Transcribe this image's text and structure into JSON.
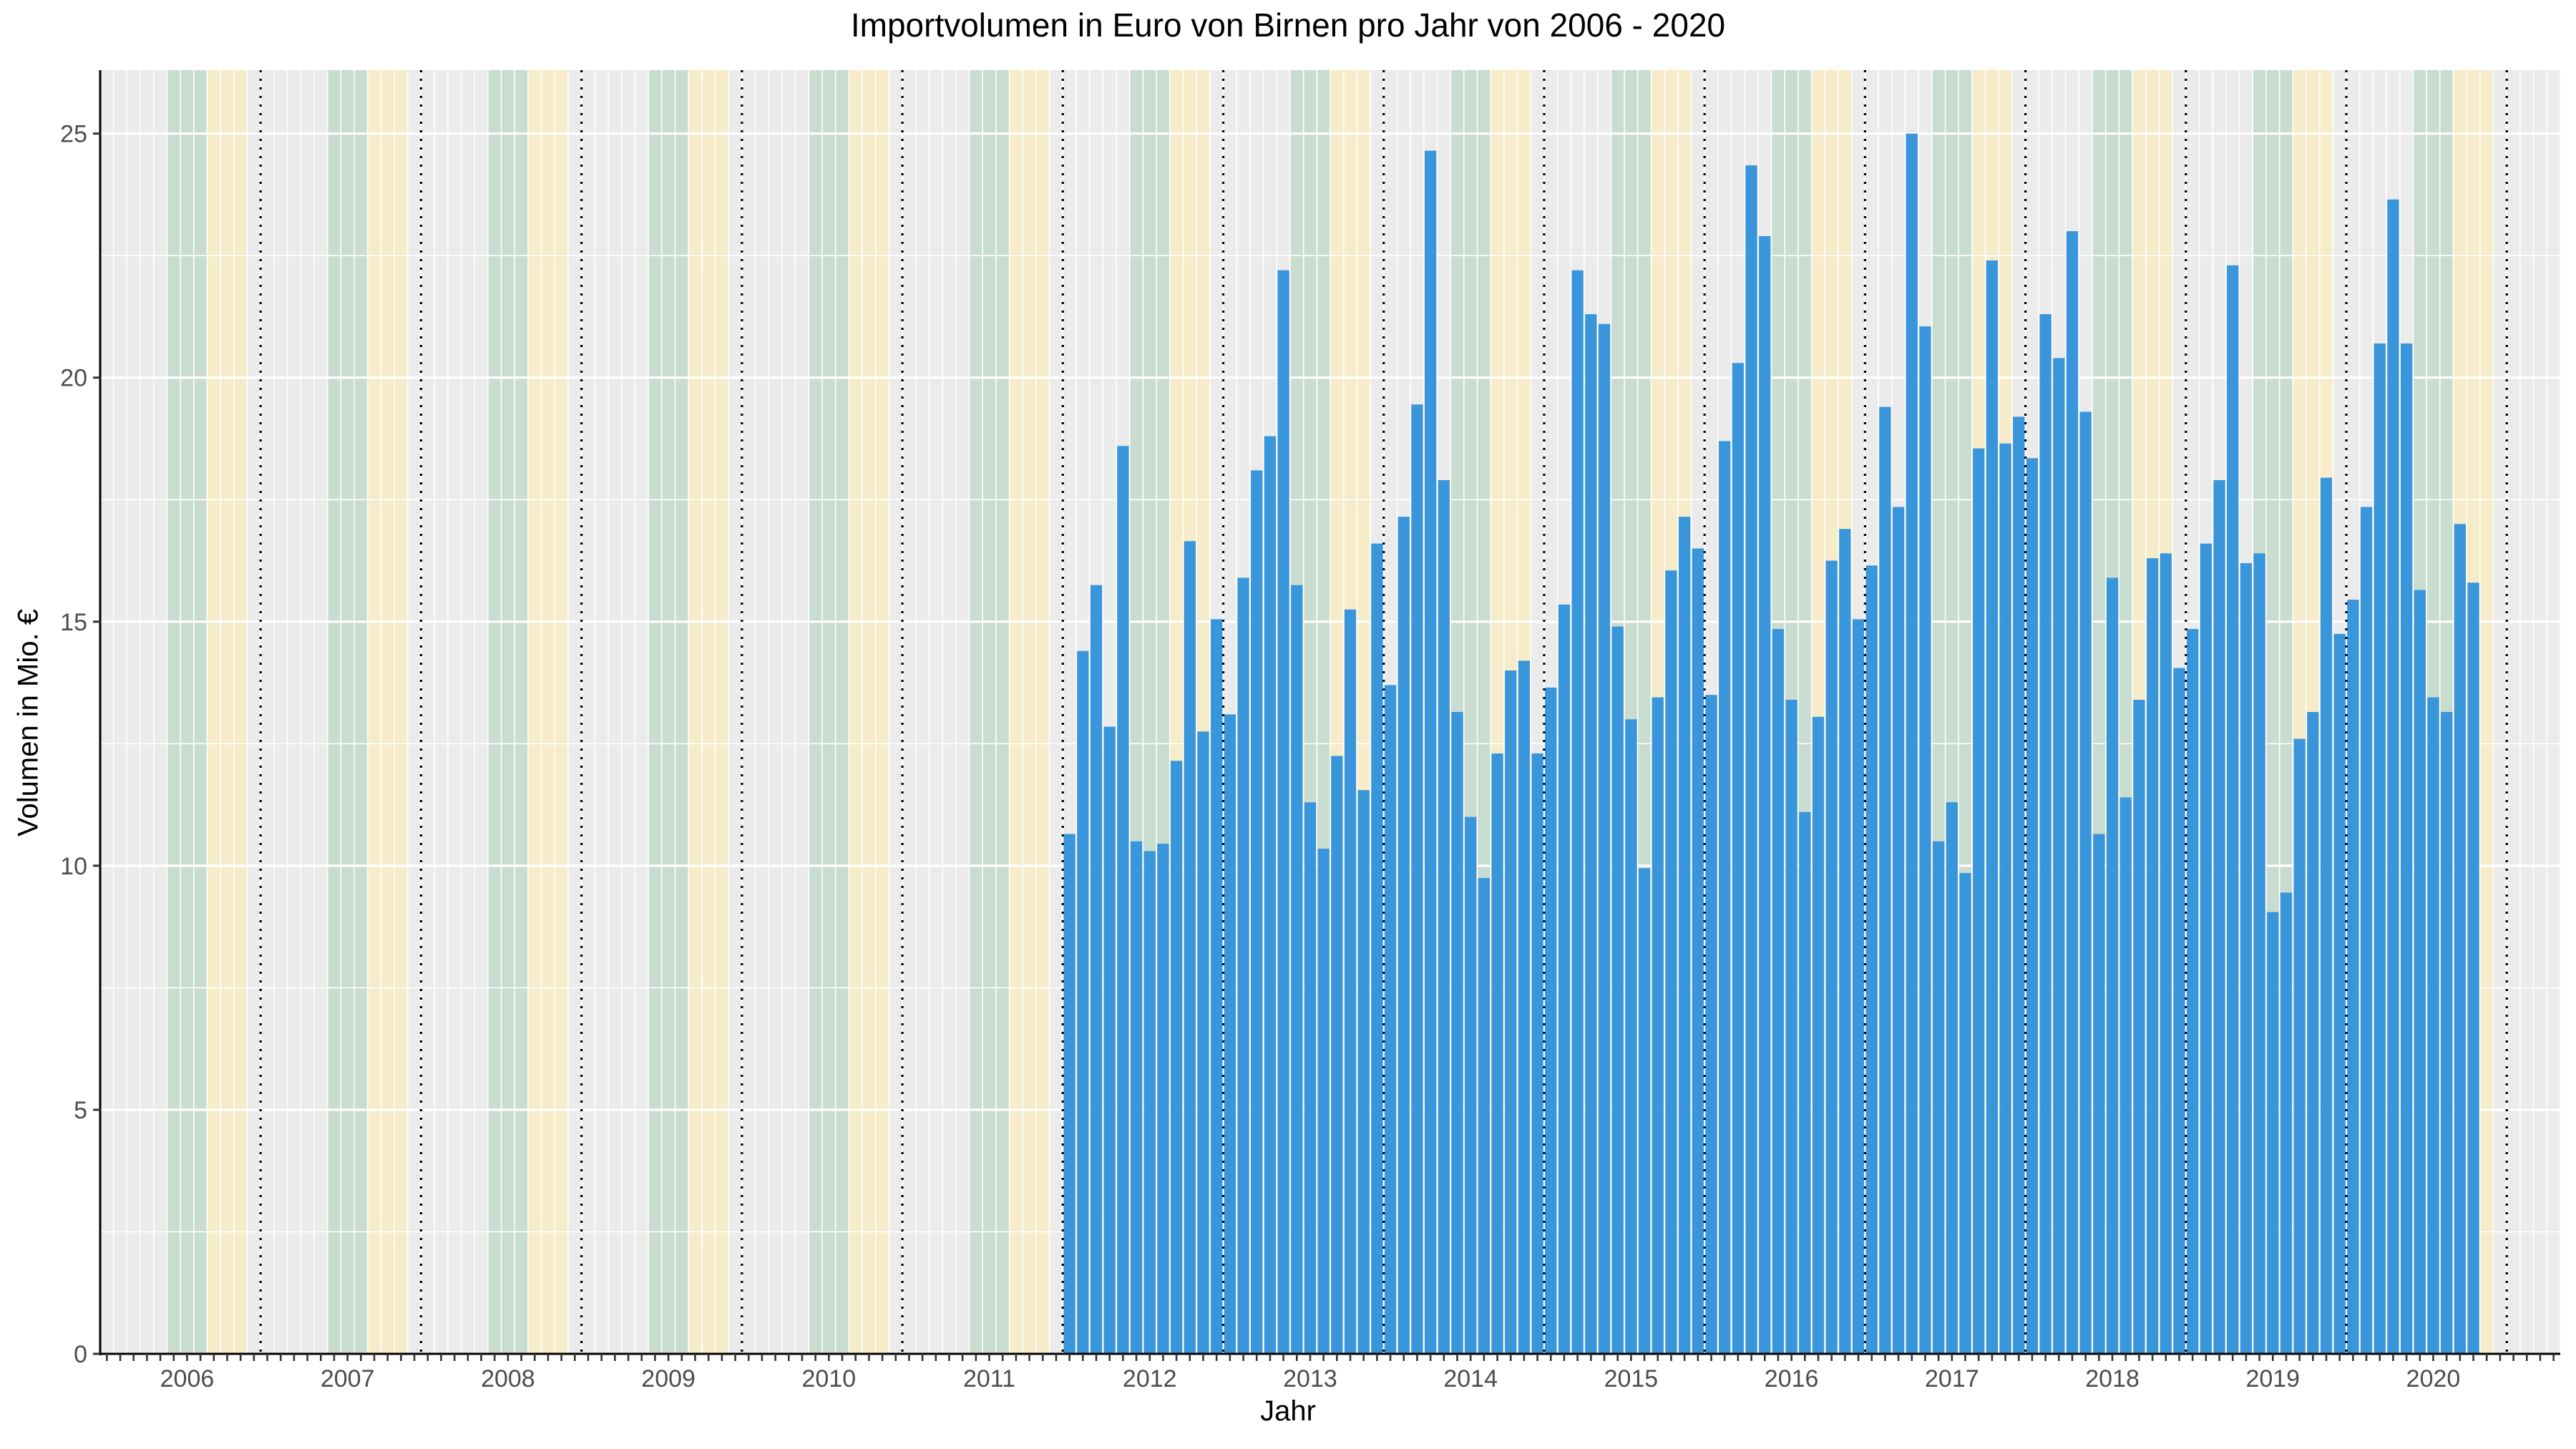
{
  "chart_data": {
    "type": "bar",
    "title": "Importvolumen in Euro von Birnen pro Jahr von 2006 - 2020",
    "xlabel": "Jahr",
    "ylabel": "Volumen in Mio. €",
    "ylim": [
      0,
      26.3
    ],
    "yticks": [
      0,
      5,
      10,
      15,
      20,
      25
    ],
    "year_labels": [
      "2006",
      "2007",
      "2008",
      "2009",
      "2010",
      "2011",
      "2012",
      "2013",
      "2014",
      "2015",
      "2016",
      "2017",
      "2018",
      "2019",
      "2020"
    ],
    "x_range": [
      "2005-07",
      "2020-10"
    ],
    "grid": true,
    "bar_color": "#3a96db",
    "series": [
      {
        "start": "2011-07",
        "values": [
          10.65,
          14.4,
          15.75,
          12.85,
          18.6,
          10.5,
          10.3,
          10.45,
          12.15,
          16.65,
          12.75,
          15.05,
          13.1,
          15.9,
          18.1,
          18.8,
          22.2,
          15.75,
          11.3,
          10.35,
          12.25,
          15.25,
          11.55,
          16.6,
          13.7,
          17.15,
          19.45,
          24.65,
          17.9,
          13.15,
          11.0,
          9.75,
          12.3,
          14.0,
          14.2,
          12.3,
          13.65,
          15.35,
          22.2,
          21.3,
          21.1,
          14.9,
          13.0,
          9.95,
          13.45,
          16.05,
          17.15,
          16.5,
          13.5,
          18.7,
          20.3,
          24.35,
          22.9,
          14.85,
          13.4,
          11.1,
          13.05,
          16.25,
          16.9,
          15.05,
          16.15,
          19.4,
          17.35,
          25.0,
          21.05,
          10.5,
          11.3,
          9.85,
          18.55,
          22.4,
          18.65,
          19.2,
          18.35,
          21.3,
          20.4,
          23.0,
          19.3,
          10.65,
          15.9,
          11.4,
          13.4,
          16.3,
          16.4,
          14.05,
          14.85,
          16.6,
          17.9,
          22.3,
          16.2,
          16.4,
          9.05,
          9.45,
          12.6,
          13.15,
          17.95,
          14.75,
          15.45,
          17.35,
          20.7,
          23.65,
          20.7,
          15.65,
          13.45,
          13.15,
          17.0,
          15.8
        ]
      }
    ],
    "season_bands": [
      {
        "name": "spring",
        "color": "#f6ecc9",
        "months": [
          3,
          4,
          5
        ]
      },
      {
        "name": "winter",
        "color": "#c8dccf",
        "months": [
          12,
          1,
          2
        ]
      },
      {
        "name": "other",
        "color": "#ebebeb",
        "months": [
          6,
          7,
          8,
          9,
          10,
          11
        ]
      }
    ],
    "year_boundary_style": "dotted",
    "year_boundary_month": 7
  }
}
